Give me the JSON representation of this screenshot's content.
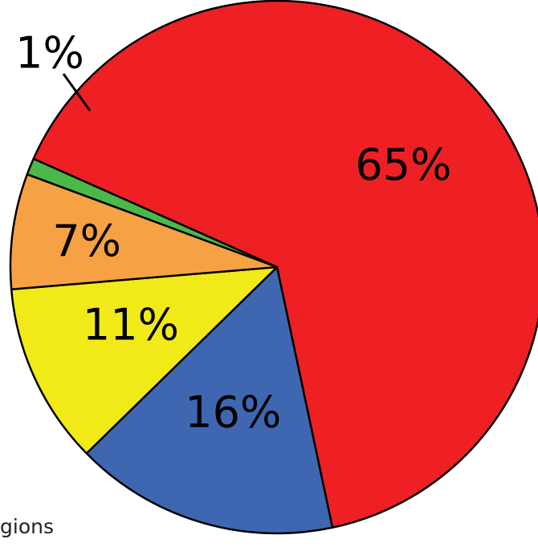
{
  "chart_data": {
    "type": "pie",
    "title": "",
    "slices": [
      {
        "label": "65%",
        "value": 65,
        "color": "#ee2024"
      },
      {
        "label": "16%",
        "value": 16,
        "color": "#3f67b1"
      },
      {
        "label": "11%",
        "value": 11,
        "color": "#f2ea18"
      },
      {
        "label": "7%",
        "value": 7,
        "color": "#f7a145"
      },
      {
        "label": "1%",
        "value": 1,
        "color": "#4cb847"
      }
    ]
  },
  "partial_label": "gions"
}
